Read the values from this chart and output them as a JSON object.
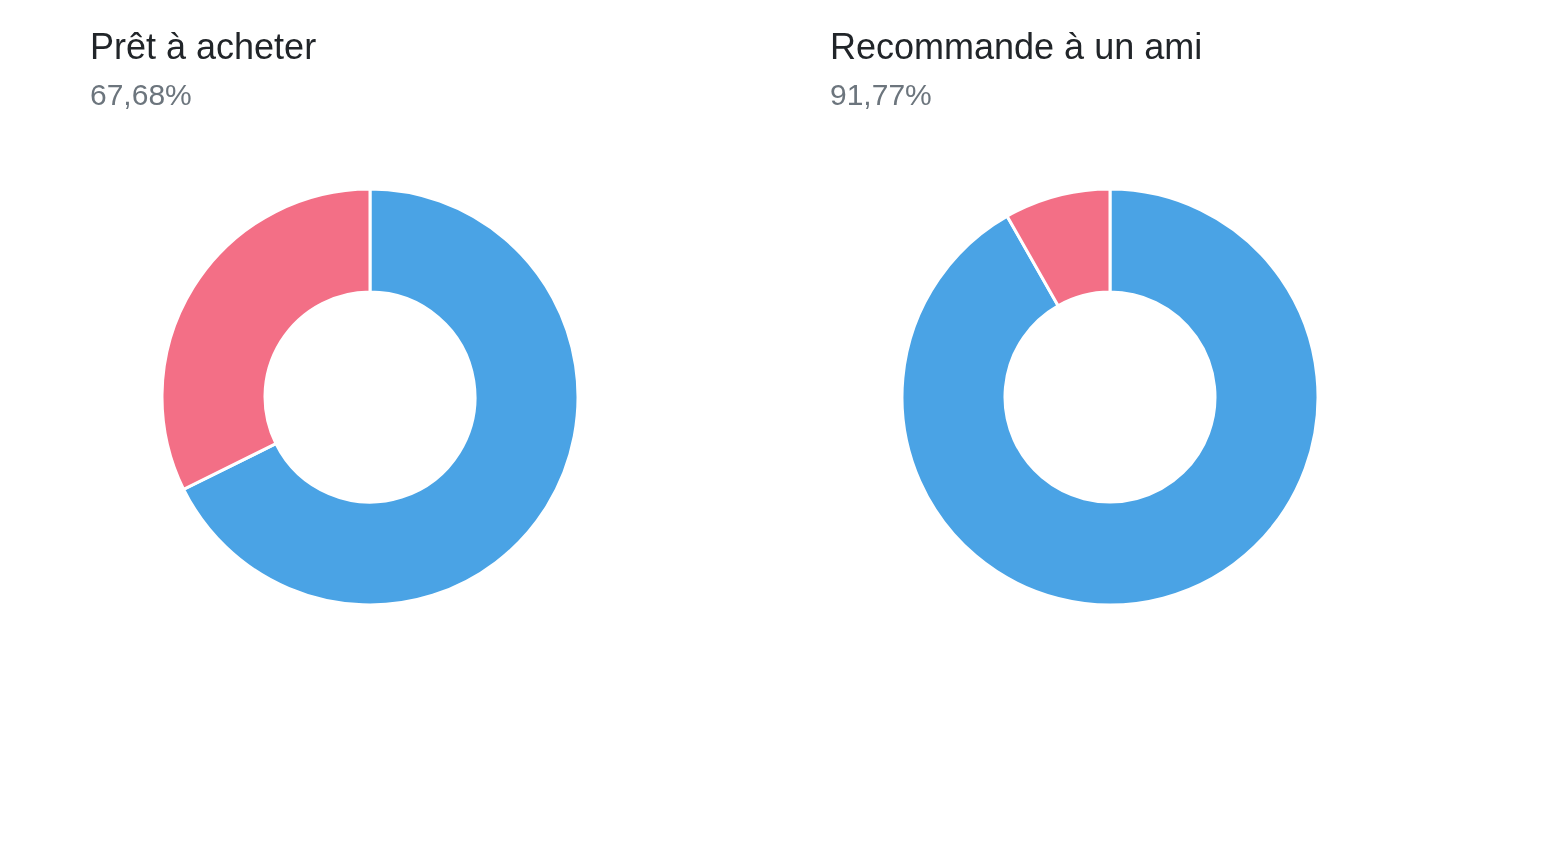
{
  "chart_data": [
    {
      "type": "donut",
      "title": "Prêt à acheter",
      "subtitle": "67,68%",
      "categories": [
        null,
        null
      ],
      "values": [
        67.68,
        32.32
      ],
      "colors": [
        "#4aa3e5",
        "#f36f86"
      ],
      "legend": false
    },
    {
      "type": "donut",
      "title": "Recommande à un ami",
      "subtitle": "91,77%",
      "categories": [
        null,
        null
      ],
      "values": [
        91.77,
        8.23
      ],
      "colors": [
        "#4aa3e5",
        "#f36f86"
      ],
      "legend": false
    }
  ]
}
